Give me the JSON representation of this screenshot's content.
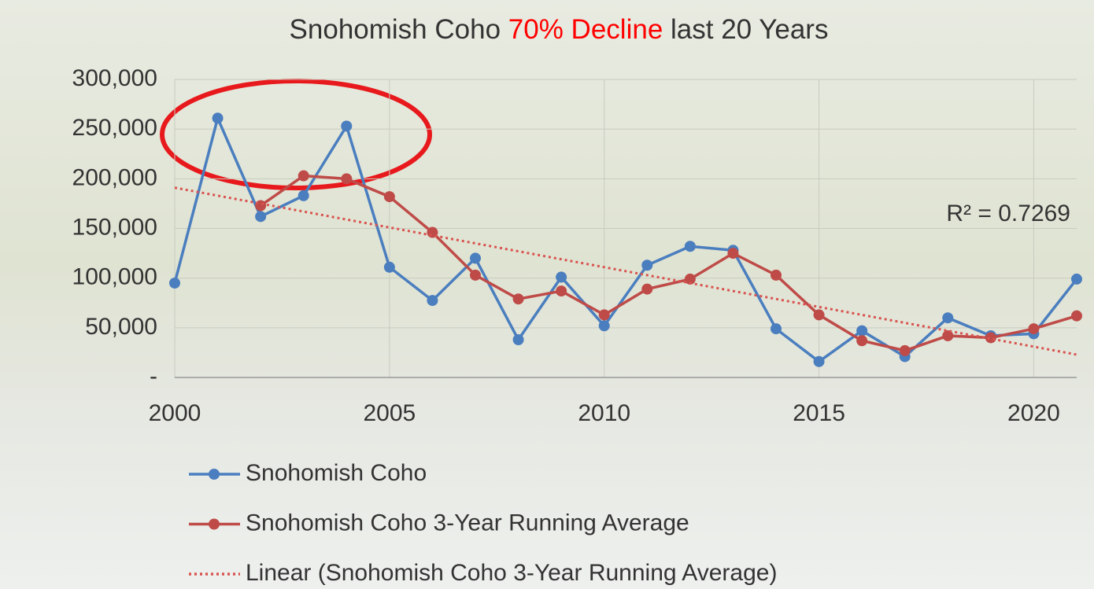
{
  "chart_data": {
    "type": "line",
    "title": [
      "Snohomish Coho",
      "70% Decline",
      "last 20 Years"
    ],
    "title_highlight_color": "#ff0000",
    "x": [
      2000,
      2001,
      2002,
      2003,
      2004,
      2005,
      2006,
      2007,
      2008,
      2009,
      2010,
      2011,
      2012,
      2013,
      2014,
      2015,
      2016,
      2017,
      2018,
      2019,
      2020,
      2021
    ],
    "xlim": [
      2000,
      2021
    ],
    "xticks": [
      2000,
      2005,
      2010,
      2015,
      2020
    ],
    "ylim": [
      0,
      300000
    ],
    "yticks": [
      {
        "value": 0,
        "label": "-"
      },
      {
        "value": 50000,
        "label": "50,000"
      },
      {
        "value": 100000,
        "label": "100,000"
      },
      {
        "value": 150000,
        "label": "150,000"
      },
      {
        "value": 200000,
        "label": "200,000"
      },
      {
        "value": 250000,
        "label": "250,000"
      },
      {
        "value": 300000,
        "label": "300,000"
      }
    ],
    "grid": true,
    "legend": "bottom",
    "series": [
      {
        "name": "Snohomish Coho",
        "color": "#4a7ebf",
        "style": "solid",
        "markers": true,
        "values": [
          95000,
          261000,
          162000,
          183000,
          253000,
          111000,
          77500,
          120000,
          38000,
          101000,
          52000,
          113000,
          132000,
          128000,
          49000,
          16000,
          47000,
          21000,
          60000,
          42000,
          44000,
          99000
        ]
      },
      {
        "name": "Snohomish Coho 3-Year Running Average",
        "color": "#bf4b48",
        "style": "solid",
        "markers": true,
        "values": [
          null,
          null,
          173000,
          203000,
          200000,
          182000,
          146000,
          103000,
          79000,
          87000,
          63000,
          89000,
          99000,
          125000,
          103000,
          63000,
          37000,
          27000,
          42000,
          40000,
          49000,
          62000
        ]
      },
      {
        "name": "Linear (Snohomish Coho 3-Year Running Average)",
        "color": "#d9534f",
        "style": "dotted",
        "markers": false,
        "x": [
          2000,
          2021
        ],
        "values": [
          191000,
          23000
        ]
      }
    ],
    "annotations": [
      "R² = 0.7269"
    ]
  }
}
